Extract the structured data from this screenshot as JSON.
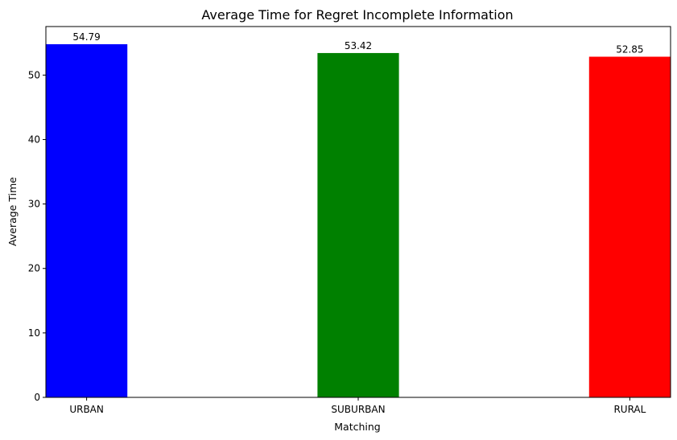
{
  "chart_data": {
    "type": "bar",
    "title": "Average Time for Regret Incomplete Information",
    "xlabel": "Matching",
    "ylabel": "Average Time",
    "categories": [
      "URBAN",
      "SUBURBAN",
      "RURAL"
    ],
    "values": [
      54.79,
      53.42,
      52.85
    ],
    "value_labels": [
      "54.79",
      "53.42",
      "52.85"
    ],
    "colors": [
      "#0000ff",
      "#008000",
      "#ff0000"
    ],
    "ylim": [
      0,
      57.53
    ],
    "yticks": [
      0,
      10,
      20,
      30,
      40,
      50
    ],
    "ytick_labels": [
      "0",
      "10",
      "20",
      "30",
      "40",
      "50"
    ],
    "grid": false,
    "legend": "none"
  }
}
